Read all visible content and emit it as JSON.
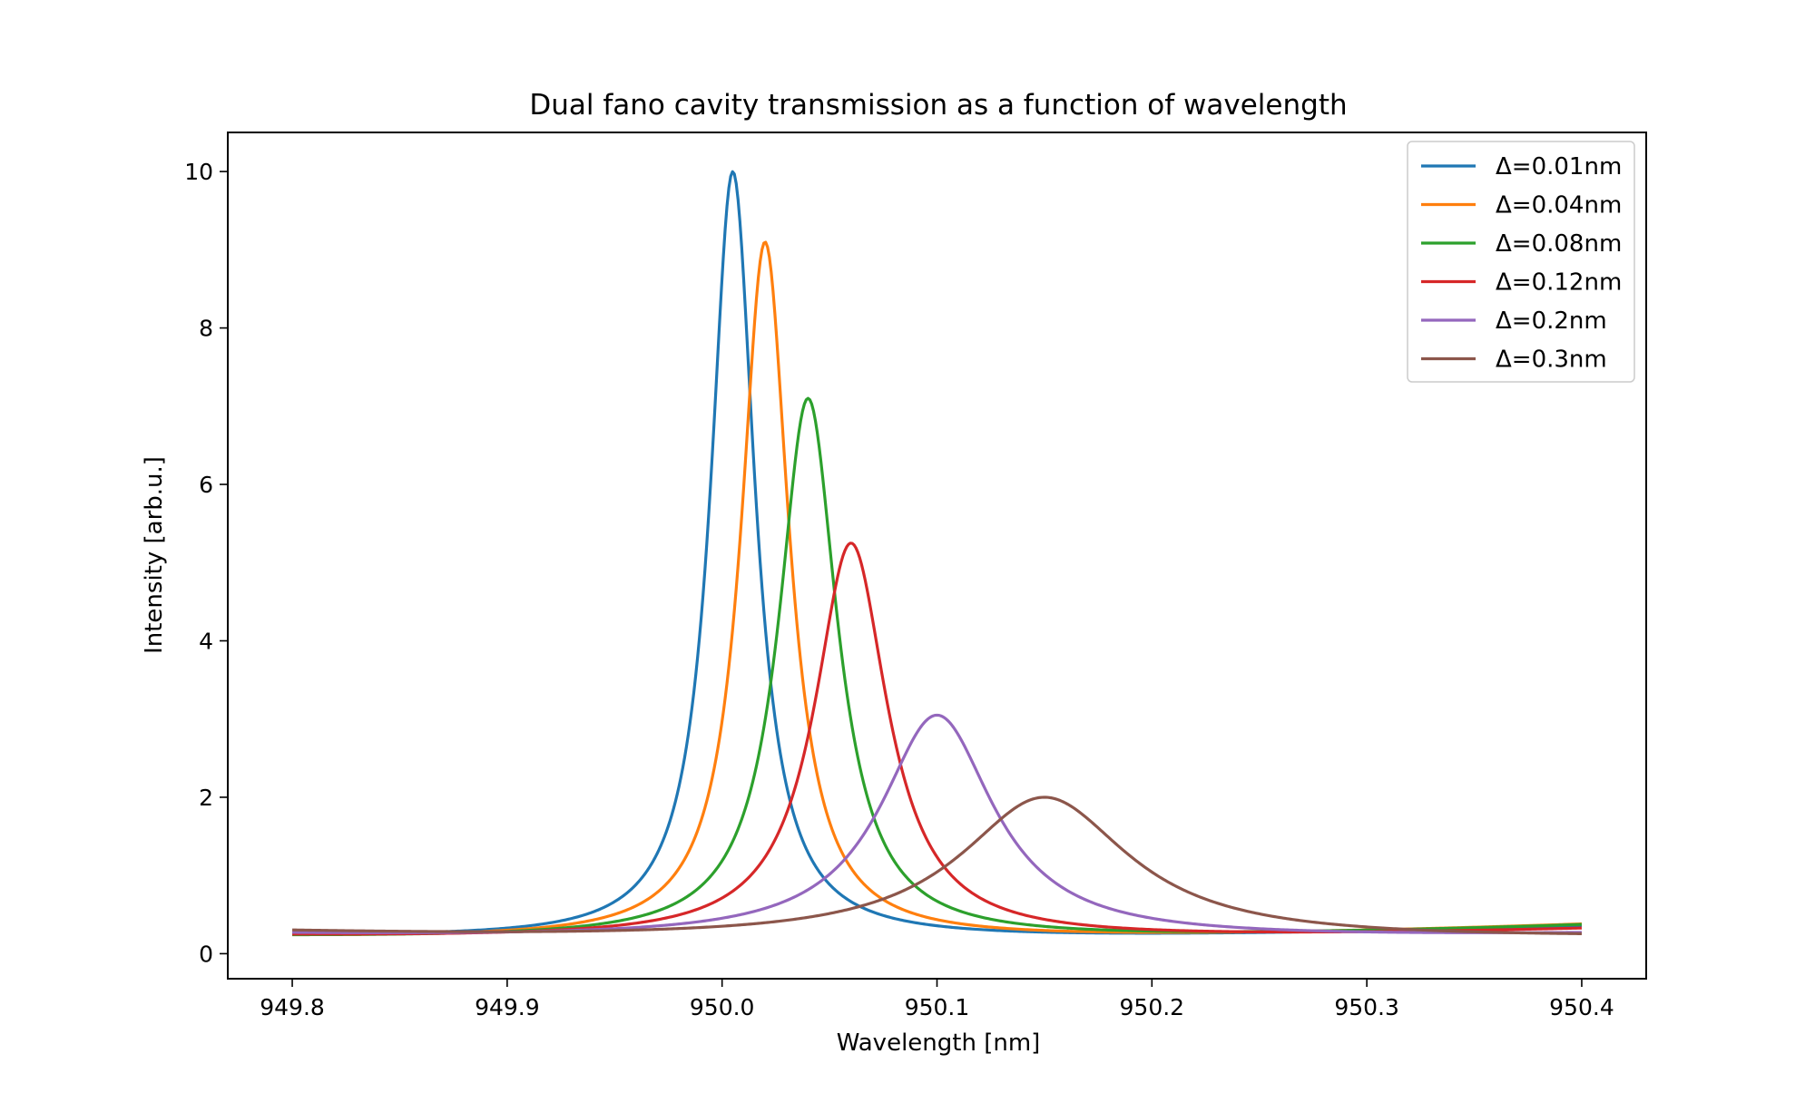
{
  "chart_data": {
    "type": "line",
    "title": "Dual fano cavity transmission as a function of wavelength",
    "xlabel": "Wavelength [nm]",
    "ylabel": "Intensity [arb.u.]",
    "xlim": [
      949.77,
      950.43
    ],
    "ylim": [
      -0.32,
      10.5
    ],
    "xticks": [
      949.8,
      949.9,
      950.0,
      950.1,
      950.2,
      950.3,
      950.4
    ],
    "xtick_labels": [
      "949.8",
      "949.9",
      "950.0",
      "950.1",
      "950.2",
      "950.3",
      "950.4"
    ],
    "yticks": [
      0,
      2,
      4,
      6,
      8,
      10
    ],
    "ytick_labels": [
      "0",
      "2",
      "4",
      "6",
      "8",
      "10"
    ],
    "grid": false,
    "legend_position": "top-right",
    "series": [
      {
        "name": "Δ=0.01nm",
        "color": "#1f77b4",
        "center": 950.005,
        "peak": 10.0,
        "width": 0.0125,
        "baseline": 0.18,
        "end_left": 0.22,
        "end_right": 0.35
      },
      {
        "name": "Δ=0.04nm",
        "color": "#ff7f0e",
        "center": 950.02,
        "peak": 9.1,
        "width": 0.0135,
        "baseline": 0.18,
        "end_left": 0.21,
        "end_right": 0.37
      },
      {
        "name": "Δ=0.08nm",
        "color": "#2ca02c",
        "center": 950.04,
        "peak": 7.1,
        "width": 0.0165,
        "baseline": 0.18,
        "end_left": 0.21,
        "end_right": 0.36
      },
      {
        "name": "Δ=0.12nm",
        "color": "#d62728",
        "center": 950.06,
        "peak": 5.25,
        "width": 0.0205,
        "baseline": 0.18,
        "end_left": 0.22,
        "end_right": 0.31
      },
      {
        "name": "Δ=0.2nm",
        "color": "#9467bd",
        "center": 950.1,
        "peak": 3.05,
        "width": 0.032,
        "baseline": 0.18,
        "end_left": 0.24,
        "end_right": 0.24
      },
      {
        "name": "Δ=0.3nm",
        "color": "#8c564b",
        "center": 950.15,
        "peak": 2.0,
        "width": 0.048,
        "baseline": 0.16,
        "end_left": 0.27,
        "end_right": 0.19
      }
    ]
  }
}
